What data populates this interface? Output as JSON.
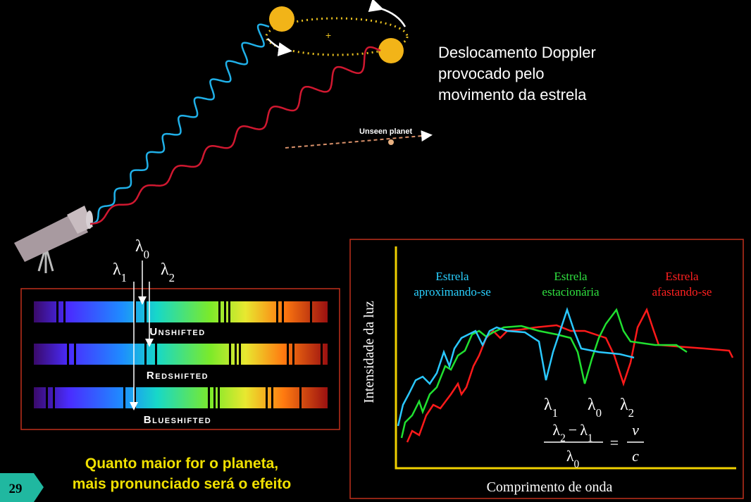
{
  "header": {
    "title_lines": [
      "Deslocamento Doppler",
      "provocado pelo",
      "movimento da estrela"
    ]
  },
  "orbit": {
    "planet_label": "Unseen planet"
  },
  "spectra": {
    "lambda_labels": [
      {
        "symbol": "λ",
        "sub": "0"
      },
      {
        "symbol": "λ",
        "sub": "1"
      },
      {
        "symbol": "λ",
        "sub": "2"
      }
    ],
    "rows": [
      "Unshifted",
      "Redshifted",
      "Blueshifted"
    ]
  },
  "caption": [
    "Quanto maior for o planeta,",
    "mais pronunciado será o efeito"
  ],
  "slide_number": "29",
  "graph": {
    "y_label": "Intensidade da luz",
    "x_label": "Comprimento de onda",
    "series_labels": [
      [
        "Estrela",
        "aproximando-se"
      ],
      [
        "Estrela",
        "estacionária"
      ],
      [
        "Estrela",
        "afastando-se"
      ]
    ],
    "lambda_labels": [
      {
        "symbol": "λ",
        "sub": "1"
      },
      {
        "symbol": "λ",
        "sub": "0"
      },
      {
        "symbol": "λ",
        "sub": "2"
      }
    ],
    "formula": {
      "numerator": [
        {
          "symbol": "λ",
          "sub": "2"
        },
        {
          "op": "−"
        },
        {
          "symbol": "λ",
          "sub": "1"
        }
      ],
      "denominator": {
        "symbol": "λ",
        "sub": "0"
      },
      "equals": "=",
      "rhs_numerator": "ν",
      "rhs_denominator": "c"
    }
  }
}
